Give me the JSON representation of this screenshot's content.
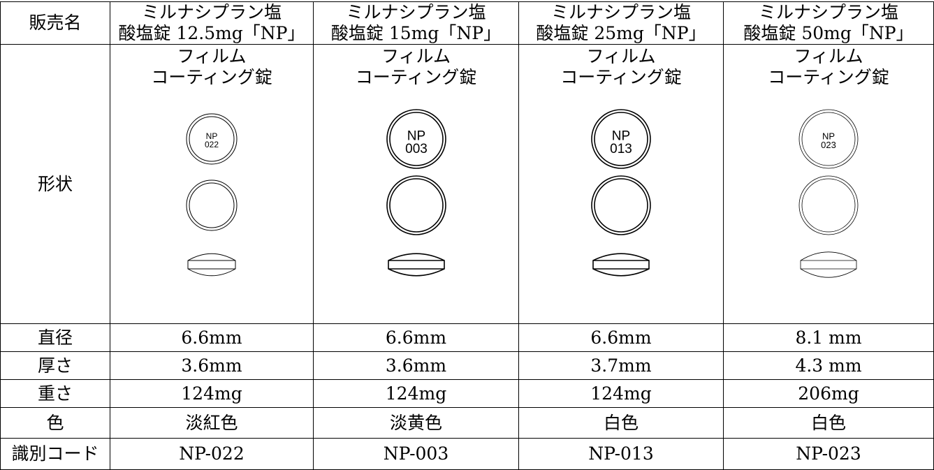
{
  "table": {
    "header": {
      "label": "販売名",
      "columns": [
        [
          "ミルナシプラン塩",
          "酸塩錠 12.5mg「NP」"
        ],
        [
          "ミルナシプラン塩",
          "酸塩錠 15mg「NP」"
        ],
        [
          "ミルナシプラン塩",
          "酸塩錠 25mg「NP」"
        ],
        [
          "ミルナシプラン塩",
          "酸塩錠 50mg「NP」"
        ]
      ]
    },
    "shape": {
      "label": "形状",
      "columns": [
        {
          "form": [
            "フィルム",
            "コーティング錠"
          ],
          "imprint": [
            "NP",
            "022"
          ]
        },
        {
          "form": [
            "フィルム",
            "コーティング錠"
          ],
          "imprint": [
            "NP",
            "003"
          ]
        },
        {
          "form": [
            "フィルム",
            "コーティング錠"
          ],
          "imprint": [
            "NP",
            "013"
          ]
        },
        {
          "form": [
            "フィルム",
            "コーティング錠"
          ],
          "imprint": [
            "NP",
            "023"
          ]
        }
      ]
    },
    "rows": [
      {
        "label": "直径",
        "cells": [
          "6.6mm",
          "6.6mm",
          "6.6mm",
          "8.1 mm"
        ]
      },
      {
        "label": "厚さ",
        "cells": [
          "3.6mm",
          "3.6mm",
          "3.7mm",
          "4.3 mm"
        ]
      },
      {
        "label": "重さ",
        "cells": [
          "124mg",
          "124mg",
          "124mg",
          "206mg"
        ]
      },
      {
        "label": "色",
        "cells": [
          "淡紅色",
          "淡黄色",
          "白色",
          "白色"
        ]
      },
      {
        "label": "識別コード",
        "cells": [
          "NP-022",
          "NP-003",
          "NP-013",
          "NP-023"
        ]
      }
    ]
  }
}
